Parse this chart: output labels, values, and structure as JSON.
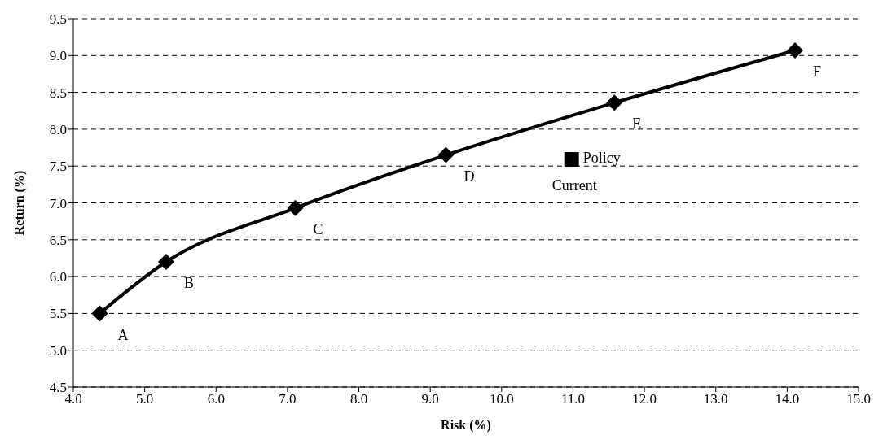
{
  "chart_data": {
    "type": "line",
    "xlabel": "Risk (%)",
    "ylabel": "Return (%)",
    "xlim": [
      4,
      15
    ],
    "xticks": [
      {
        "value": 4,
        "label": "4.0"
      },
      {
        "value": 5,
        "label": "5.0"
      },
      {
        "value": 6,
        "label": "6.0"
      },
      {
        "value": 7,
        "label": "7.0"
      },
      {
        "value": 8,
        "label": "8.0"
      },
      {
        "value": 9,
        "label": "9.0"
      },
      {
        "value": 10,
        "label": "10.0"
      },
      {
        "value": 11,
        "label": "11.0"
      },
      {
        "value": 12,
        "label": "12.0"
      },
      {
        "value": 13,
        "label": "13.0"
      },
      {
        "value": 14,
        "label": "14.0"
      },
      {
        "value": 15,
        "label": "15.0"
      }
    ],
    "ylim": [
      4.5,
      9.5
    ],
    "yticks": [
      4.5,
      {
        "value": 5,
        "label": "5.0"
      },
      5.5,
      {
        "value": 6,
        "label": "6.0"
      },
      6.5,
      {
        "value": 7,
        "label": "7.0"
      },
      7.5,
      {
        "value": 8,
        "label": "8.0"
      },
      8.5,
      {
        "value": 9,
        "label": "9.0"
      },
      9.5
    ],
    "grid": "y",
    "line_style": "solid",
    "series": [
      {
        "marker": "diamond",
        "color": "#000000",
        "x": [
          4.37,
          5.3,
          7.11,
          9.22,
          11.58,
          14.11
        ],
        "values": [
          5.5,
          6.2,
          6.93,
          7.65,
          8.36,
          9.07
        ]
      },
      {
        "type": "scatter",
        "marker": "square",
        "color": "#000000",
        "x": [
          10.98
        ],
        "values": [
          7.59
        ]
      }
    ],
    "annotations": [
      {
        "text": "A",
        "x": 4.37,
        "y": 5.5
      },
      {
        "text": "B",
        "x": 5.3,
        "y": 6.2
      },
      {
        "text": "C",
        "x": 7.11,
        "y": 6.93
      },
      {
        "text": "D",
        "x": 9.22,
        "y": 7.65
      },
      {
        "text": "E",
        "x": 11.58,
        "y": 8.36
      },
      {
        "text": "F",
        "x": 14.11,
        "y": 9.07
      },
      {
        "text": "Policy",
        "x": 10.98,
        "y": 7.59
      },
      {
        "text": "Current",
        "x": 10.98,
        "y": 7.59
      }
    ]
  }
}
